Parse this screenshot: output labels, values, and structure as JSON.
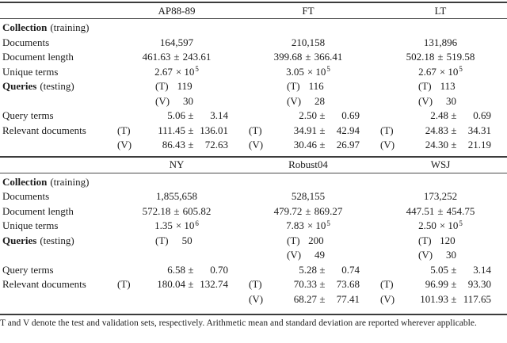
{
  "symbols": {
    "pm": "±",
    "times10": "× 10",
    "t": "(T)",
    "v": "(V)"
  },
  "row_labels": {
    "collection": "Collection",
    "collection_note": "(training)",
    "documents": "Documents",
    "doc_length": "Document length",
    "unique_terms": "Unique terms",
    "queries": "Queries",
    "queries_note": "(testing)",
    "query_terms": "Query terms",
    "relevant_docs": "Relevant documents"
  },
  "tables": [
    {
      "headers": [
        "AP88-89",
        "FT",
        "LT"
      ],
      "documents": [
        "164,597",
        "210,158",
        "131,896"
      ],
      "doc_length": [
        {
          "mean": "461.63",
          "std": "243.61"
        },
        {
          "mean": "399.68",
          "std": "366.41"
        },
        {
          "mean": "502.18",
          "std": "519.58"
        }
      ],
      "unique_terms": [
        {
          "coef": "2.67",
          "exp": "5"
        },
        {
          "coef": "3.05",
          "exp": "5"
        },
        {
          "coef": "2.67",
          "exp": "5"
        }
      ],
      "queries_t": [
        "119",
        "116",
        "113"
      ],
      "queries_v": [
        "30",
        "28",
        "30"
      ],
      "query_terms": [
        {
          "mean": "5.06",
          "std": "3.14"
        },
        {
          "mean": "2.50",
          "std": "0.69"
        },
        {
          "mean": "2.48",
          "std": "0.69"
        }
      ],
      "relevant_t": [
        {
          "mean": "111.45",
          "std": "136.01"
        },
        {
          "mean": "34.91",
          "std": "42.94"
        },
        {
          "mean": "24.83",
          "std": "34.31"
        }
      ],
      "relevant_v": [
        {
          "mean": "86.43",
          "std": "72.63"
        },
        {
          "mean": "30.46",
          "std": "26.97"
        },
        {
          "mean": "24.30",
          "std": "21.19"
        }
      ]
    },
    {
      "headers": [
        "NY",
        "Robust04",
        "WSJ"
      ],
      "documents": [
        "1,855,658",
        "528,155",
        "173,252"
      ],
      "doc_length": [
        {
          "mean": "572.18",
          "std": "605.82"
        },
        {
          "mean": "479.72",
          "std": "869.27"
        },
        {
          "mean": "447.51",
          "std": "454.75"
        }
      ],
      "unique_terms": [
        {
          "coef": "1.35",
          "exp": "6"
        },
        {
          "coef": "7.83",
          "exp": "5"
        },
        {
          "coef": "2.50",
          "exp": "5"
        }
      ],
      "queries_t": [
        "50",
        "200",
        "120"
      ],
      "queries_v": [
        null,
        "49",
        "30"
      ],
      "query_terms": [
        {
          "mean": "6.58",
          "std": "0.70"
        },
        {
          "mean": "5.28",
          "std": "0.74"
        },
        {
          "mean": "5.05",
          "std": "3.14"
        }
      ],
      "relevant_t": [
        {
          "mean": "180.04",
          "std": "132.74"
        },
        {
          "mean": "70.33",
          "std": "73.68"
        },
        {
          "mean": "96.99",
          "std": "93.30"
        }
      ],
      "relevant_v": [
        null,
        {
          "mean": "68.27",
          "std": "77.41"
        },
        {
          "mean": "101.93",
          "std": "117.65"
        }
      ]
    }
  ],
  "footnote": "T and V denote the test and validation sets, respectively. Arithmetic mean and standard deviation are reported wherever applicable."
}
